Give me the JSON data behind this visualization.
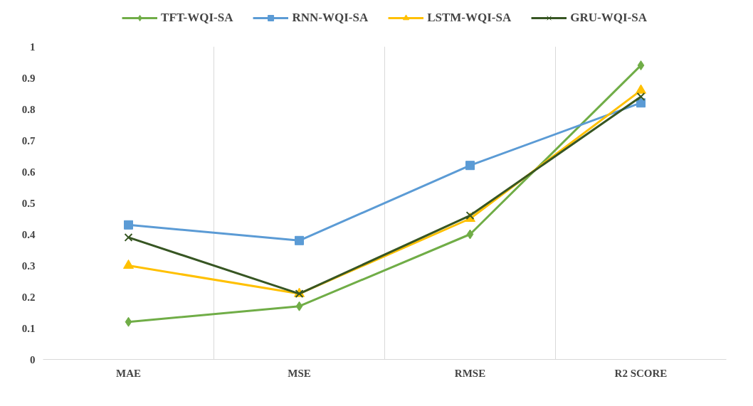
{
  "chart_data": {
    "type": "line",
    "categories": [
      "MAE",
      "MSE",
      "RMSE",
      "R2 SCORE"
    ],
    "series": [
      {
        "name": "TFT-WQI-SA",
        "color": "#70ad47",
        "marker": "diamond",
        "values": [
          0.12,
          0.17,
          0.4,
          0.94
        ]
      },
      {
        "name": "RNN-WQI-SA",
        "color": "#5b9bd5",
        "marker": "square",
        "values": [
          0.43,
          0.38,
          0.62,
          0.82
        ]
      },
      {
        "name": "LSTM-WQI-SA",
        "color": "#ffc000",
        "marker": "triangle",
        "values": [
          0.3,
          0.21,
          0.45,
          0.86
        ]
      },
      {
        "name": "GRU-WQI-SA",
        "color": "#375623",
        "marker": "cross",
        "values": [
          0.39,
          0.21,
          0.46,
          0.84
        ]
      }
    ],
    "ylim": [
      0,
      1
    ],
    "yticks": [
      0,
      0.1,
      0.2,
      0.3,
      0.4,
      0.5,
      0.6,
      0.7,
      0.8,
      0.9,
      1
    ],
    "grid": "x",
    "legend": "top",
    "line_style": "solid"
  }
}
